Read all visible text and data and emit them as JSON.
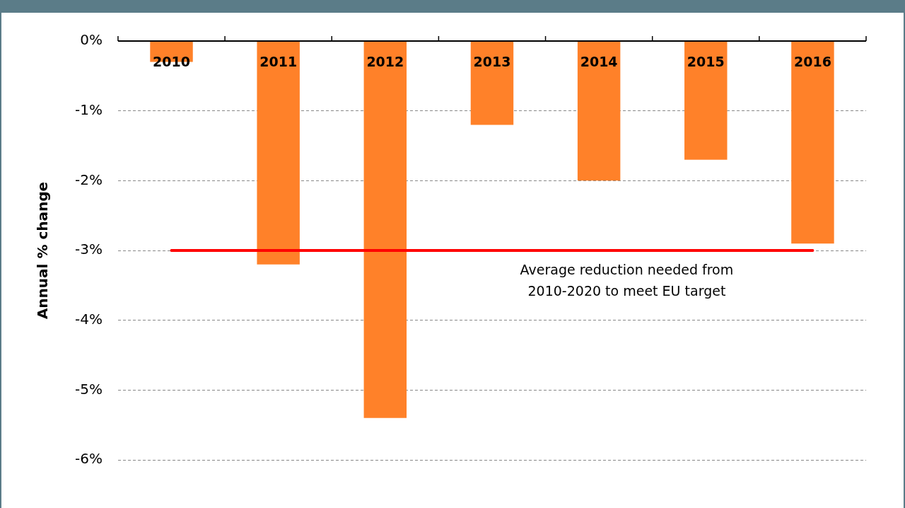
{
  "chart_data": {
    "type": "bar",
    "ylabel": "Annual % change",
    "categories": [
      "2010",
      "2011",
      "2012",
      "2013",
      "2014",
      "2015",
      "2016"
    ],
    "values": [
      -0.3,
      -3.2,
      -5.4,
      -1.2,
      -2.0,
      -1.7,
      -2.9
    ],
    "color": "#ff8129",
    "ylim": [
      -6,
      0
    ],
    "yticks": [
      {
        "value": 0,
        "label": "0%"
      },
      {
        "value": -1,
        "label": "-1%"
      },
      {
        "value": -2,
        "label": "-2%"
      },
      {
        "value": -3,
        "label": "-3%"
      },
      {
        "value": -4,
        "label": "-4%"
      },
      {
        "value": -5,
        "label": "-5%"
      },
      {
        "value": -6,
        "label": "-6%"
      }
    ],
    "grid": "y",
    "ref_lines": [
      {
        "axis": "y",
        "value": -3,
        "label": "Average reduction needed from\n2010-2020 to meet EU target",
        "color": "#ff0000"
      }
    ]
  }
}
